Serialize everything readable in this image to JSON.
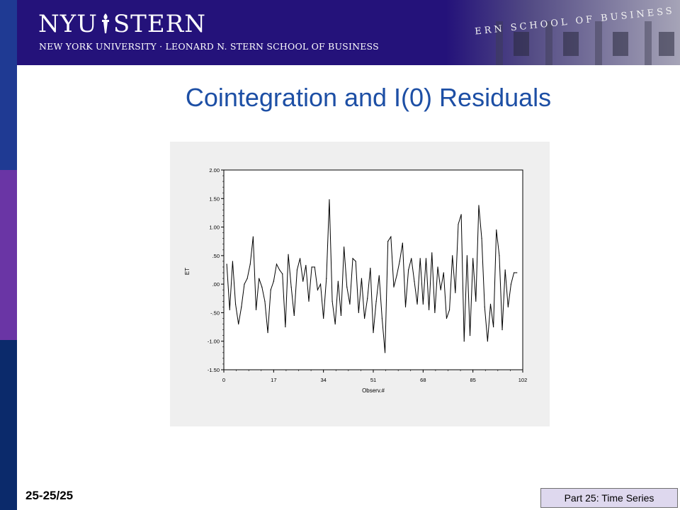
{
  "header": {
    "logo_text": "NYU STERN",
    "logo_left": "NYU",
    "logo_right": "STERN",
    "tagline": "NEW YORK UNIVERSITY · LEONARD N. STERN SCHOOL OF BUSINESS",
    "building_text": "ERN SCHOOL OF BUSINESS"
  },
  "slide": {
    "title": "Cointegration and I(0) Residuals",
    "number": "25-25/25",
    "part": "Part 25: Time Series"
  },
  "colors": {
    "left_bar_top": "#1f3a93",
    "left_bar_middle": "#6a35a5",
    "left_bar_bottom": "#0b2a6b",
    "header_bg": "#24127a",
    "title": "#1d4fa5",
    "part_box": "#ded8ee"
  },
  "chart_data": {
    "type": "line",
    "xlabel": "Observ.#",
    "ylabel": "ET",
    "xlim": [
      0,
      102
    ],
    "ylim": [
      -1.5,
      2.0
    ],
    "xticks": [
      0,
      17,
      34,
      51,
      68,
      85,
      102
    ],
    "xtick_labels": [
      "0",
      "17",
      "34",
      "51",
      "68",
      "85",
      "102"
    ],
    "yticks": [
      2.0,
      1.5,
      1.0,
      0.5,
      0.0,
      -0.5,
      -1.0,
      -1.5
    ],
    "ytick_labels": [
      "2.00",
      "1.50",
      "1.00",
      ".50",
      ".00",
      "-.50",
      "-1.00",
      "-1.50"
    ],
    "grid": false,
    "series": [
      {
        "x": [
          1,
          2,
          3,
          4,
          5,
          6,
          7,
          8,
          9,
          10,
          11,
          12,
          13,
          14,
          15,
          16,
          17,
          18,
          19,
          20,
          21,
          22,
          23,
          24,
          25,
          26,
          27,
          28,
          29,
          30,
          31,
          32,
          33,
          34,
          35,
          36,
          37,
          38,
          39,
          40,
          41,
          42,
          43,
          44,
          45,
          46,
          47,
          48,
          49,
          50,
          51,
          52,
          53,
          54,
          55,
          56,
          57,
          58,
          59,
          60,
          61,
          62,
          63,
          64,
          65,
          66,
          67,
          68,
          69,
          70,
          71,
          72,
          73,
          74,
          75,
          76,
          77,
          78,
          79,
          80,
          81,
          82,
          83,
          84,
          85,
          86,
          87,
          88,
          89,
          90,
          91,
          92,
          93,
          94,
          95,
          96,
          97,
          98,
          99,
          100
        ],
        "values": [
          0.35,
          -0.45,
          0.4,
          -0.35,
          -0.7,
          -0.4,
          0.0,
          0.1,
          0.35,
          0.83,
          -0.45,
          0.1,
          -0.05,
          -0.3,
          -0.85,
          -0.1,
          0.05,
          0.35,
          0.25,
          0.18,
          -0.75,
          0.52,
          -0.05,
          -0.55,
          0.25,
          0.45,
          0.05,
          0.33,
          -0.3,
          0.3,
          0.3,
          -0.1,
          0.0,
          -0.6,
          0.1,
          1.48,
          -0.3,
          -0.7,
          0.05,
          -0.55,
          0.65,
          -0.05,
          -0.35,
          0.45,
          0.4,
          -0.5,
          0.1,
          -0.6,
          -0.25,
          0.28,
          -0.85,
          -0.3,
          0.15,
          -0.6,
          -1.2,
          0.75,
          0.83,
          -0.05,
          0.15,
          0.4,
          0.72,
          -0.4,
          0.25,
          0.45,
          0.05,
          -0.35,
          0.45,
          -0.35,
          0.45,
          -0.45,
          0.55,
          -0.5,
          0.3,
          -0.1,
          0.2,
          -0.6,
          -0.45,
          0.5,
          -0.15,
          1.05,
          1.22,
          -1.0,
          0.5,
          -0.9,
          0.45,
          -0.3,
          1.38,
          0.8,
          -0.4,
          -1.0,
          -0.35,
          -0.75,
          0.95,
          0.5,
          -0.8,
          0.25,
          -0.4,
          0.0,
          0.2,
          0.2
        ]
      }
    ]
  }
}
